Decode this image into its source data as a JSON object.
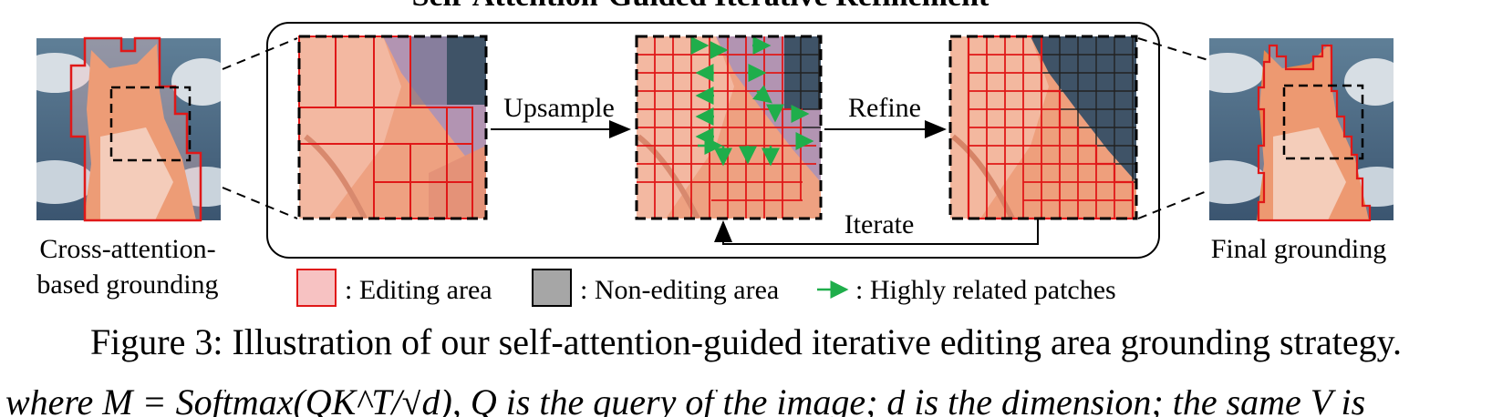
{
  "figure": {
    "title": "Self-Attention-Guided Iterative Refinement",
    "left_label_line1": "Cross-attention-",
    "left_label_line2": "based grounding",
    "right_label": "Final grounding",
    "step_upsample": "Upsample",
    "step_refine": "Refine",
    "step_iterate": "Iterate",
    "legend": {
      "editing": ": Editing area",
      "non_editing": ": Non-editing area",
      "related": ": Highly related patches"
    },
    "colors": {
      "editing_fill": "#f7c2c2",
      "editing_border": "#e01818",
      "non_editing_fill": "#a6a6a6",
      "arrow_green": "#1fae4b",
      "sky": "#3d5a73",
      "cat_orange": "#e8874e"
    }
  },
  "caption": "Figure 3: Illustration of our self-attention-guided iterative editing area grounding strategy.",
  "body_text_fragment": "where M = Softmax(QK^T/√d), Q is the query of the image; d is the dimension; the same V is"
}
